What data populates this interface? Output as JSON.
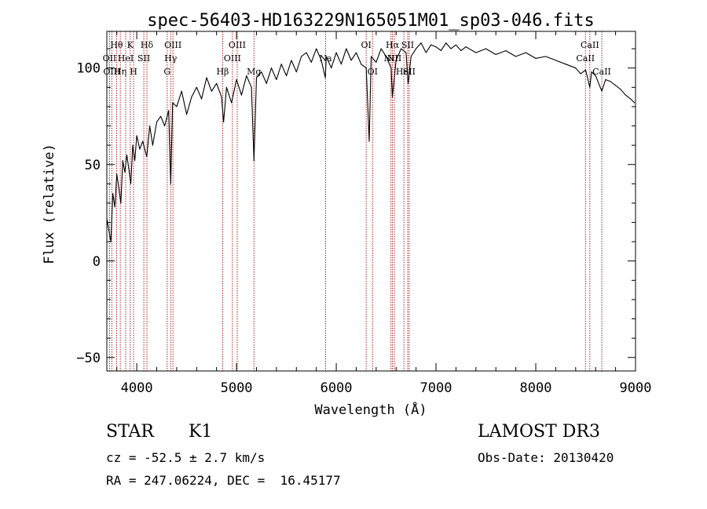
{
  "chart_data": {
    "type": "line",
    "title": "spec-56403-HD163229N165051M01_sp03-046.fits",
    "xlabel": "Wavelength (Å)",
    "ylabel": "Flux (relative)",
    "xlim": [
      3700,
      9000
    ],
    "ylim": [
      -57,
      119
    ],
    "xticks": [
      4000,
      5000,
      6000,
      7000,
      8000,
      9000
    ],
    "yticks": [
      -50,
      0,
      50,
      100
    ],
    "grid": false,
    "line_color": "#000000",
    "marker_color": "#b22222",
    "series": [
      {
        "x": [
          3700,
          3740,
          3760,
          3780,
          3800,
          3820,
          3840,
          3860,
          3880,
          3900,
          3920,
          3940,
          3960,
          3980,
          4000,
          4030,
          4060,
          4100,
          4130,
          4160,
          4200,
          4240,
          4280,
          4320,
          4340,
          4360,
          4400,
          4450,
          4500,
          4550,
          4600,
          4650,
          4700,
          4750,
          4800,
          4850,
          4870,
          4900,
          4950,
          5000,
          5050,
          5100,
          5150,
          5175,
          5200,
          5250,
          5300,
          5350,
          5400,
          5450,
          5500,
          5550,
          5600,
          5650,
          5700,
          5750,
          5800,
          5850,
          5890,
          5900,
          5950,
          6000,
          6050,
          6100,
          6150,
          6200,
          6250,
          6300,
          6330,
          6350,
          6400,
          6450,
          6500,
          6550,
          6563,
          6600,
          6650,
          6700,
          6720,
          6750,
          6800,
          6850,
          6900,
          6950,
          7000,
          7050,
          7100,
          7150,
          7200,
          7250,
          7300,
          7400,
          7500,
          7600,
          7700,
          7800,
          7900,
          8000,
          8100,
          8200,
          8300,
          8400,
          8450,
          8500,
          8542,
          8560,
          8600,
          8662,
          8700,
          8750,
          8800,
          8850,
          8900,
          8950,
          8990
        ],
        "y": [
          22,
          10,
          35,
          28,
          45,
          38,
          30,
          52,
          46,
          55,
          48,
          40,
          60,
          52,
          65,
          58,
          62,
          54,
          70,
          60,
          72,
          75,
          70,
          78,
          40,
          82,
          80,
          88,
          76,
          85,
          90,
          84,
          95,
          88,
          92,
          85,
          72,
          90,
          82,
          94,
          86,
          96,
          90,
          52,
          95,
          98,
          92,
          100,
          94,
          102,
          96,
          104,
          98,
          106,
          108,
          103,
          110,
          104,
          95,
          106,
          100,
          108,
          102,
          110,
          104,
          108,
          102,
          100,
          62,
          106,
          103,
          110,
          106,
          100,
          85,
          104,
          110,
          108,
          92,
          106,
          110,
          113,
          108,
          112,
          111,
          109,
          113,
          110,
          112,
          109,
          111,
          108,
          110,
          107,
          109,
          106,
          108,
          105,
          106,
          104,
          102,
          100,
          97,
          99,
          90,
          98,
          96,
          88,
          94,
          93,
          91,
          89,
          86,
          84,
          82
        ]
      }
    ],
    "line_markers": [
      {
        "wavelength": 3727,
        "label": "OII",
        "row": 1
      },
      {
        "wavelength": 3750,
        "label": "OIII",
        "row": 2
      },
      {
        "wavelength": 3798,
        "label": "Hθ",
        "row": 0
      },
      {
        "wavelength": 3835,
        "label": "Hη",
        "row": 2
      },
      {
        "wavelength": 3889,
        "label": "HeI",
        "row": 1
      },
      {
        "wavelength": 3934,
        "label": "K",
        "row": 0
      },
      {
        "wavelength": 3968,
        "label": "H",
        "row": 2
      },
      {
        "wavelength": 4071,
        "label": "SII",
        "row": 1
      },
      {
        "wavelength": 4102,
        "label": "Hδ",
        "row": 0
      },
      {
        "wavelength": 4305,
        "label": "G",
        "row": 2
      },
      {
        "wavelength": 4340,
        "label": "Hγ",
        "row": 1
      },
      {
        "wavelength": 4363,
        "label": "OIII",
        "row": 0
      },
      {
        "wavelength": 4861,
        "label": "Hβ",
        "row": 2
      },
      {
        "wavelength": 4959,
        "label": "OIII",
        "row": 1
      },
      {
        "wavelength": 5007,
        "label": "OIII",
        "row": 0
      },
      {
        "wavelength": 5175,
        "label": "Mg",
        "row": 2
      },
      {
        "wavelength": 5893,
        "label": "Na",
        "row": 1
      },
      {
        "wavelength": 6300,
        "label": "OI",
        "row": 0
      },
      {
        "wavelength": 6364,
        "label": "OI",
        "row": 2
      },
      {
        "wavelength": 6548,
        "label": "NII",
        "row": 1
      },
      {
        "wavelength": 6563,
        "label": "Hα",
        "row": 0
      },
      {
        "wavelength": 6583,
        "label": "NII",
        "row": 1
      },
      {
        "wavelength": 6678,
        "label": "HeI",
        "row": 2
      },
      {
        "wavelength": 6716,
        "label": "SII",
        "row": 0
      },
      {
        "wavelength": 6731,
        "label": "SII",
        "row": 2
      },
      {
        "wavelength": 8498,
        "label": "CaII",
        "row": 1
      },
      {
        "wavelength": 8542,
        "label": "CaII",
        "row": 0
      },
      {
        "wavelength": 8662,
        "label": "CaII",
        "row": 2
      }
    ]
  },
  "info": {
    "object_class": "STAR",
    "subclass": "K1",
    "redshift": "cz = -52.5 ± 2.7 km/s",
    "coordinates": "RA = 247.06224, DEC =  16.45177",
    "survey": "LAMOST DR3",
    "obs_date": "Obs-Date: 20130420"
  }
}
